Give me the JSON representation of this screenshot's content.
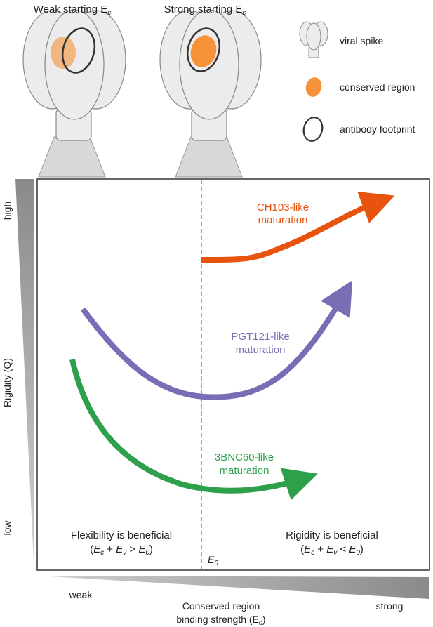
{
  "spikes": {
    "weak_title": "Weak starting E",
    "strong_title": "Strong starting E",
    "subscript": "c"
  },
  "legend": {
    "items": [
      {
        "icon": "viral-spike-icon",
        "label": "viral spike"
      },
      {
        "icon": "conserved-region-icon",
        "label": "conserved region"
      },
      {
        "icon": "antibody-footprint-icon",
        "label": "antibody footprint"
      }
    ]
  },
  "colors": {
    "ch103": "#e8530e",
    "pgt121": "#7a6cb5",
    "bnc60": "#2ea04b",
    "conserved_region": "#f7923a",
    "spike_fill": "#ececec",
    "spike_stroke": "#888888",
    "footprint_stroke": "#333333"
  },
  "axes": {
    "y_label": "Rigidity (Q)",
    "y_high": "high",
    "y_low": "low",
    "x_label_line1": "Conserved region",
    "x_label_line2": "binding strength (E",
    "x_label_sub": "c",
    "x_label_close": ")",
    "x_weak": "weak",
    "x_strong": "strong"
  },
  "threshold": {
    "label": "E",
    "sub": "0"
  },
  "curves": [
    {
      "id": "ch103",
      "line1": "CH103-like",
      "line2": "maturation"
    },
    {
      "id": "pgt121",
      "line1": "PGT121-like",
      "line2": "maturation"
    },
    {
      "id": "bnc60",
      "line1": "3BNC60-like",
      "line2": "maturation"
    }
  ],
  "regions": {
    "left_title": "Flexibility is beneficial",
    "left_formula": "(E c + E v > E 0)",
    "right_title": "Rigidity is beneficial",
    "right_formula": "(E c + E v < E 0)"
  }
}
